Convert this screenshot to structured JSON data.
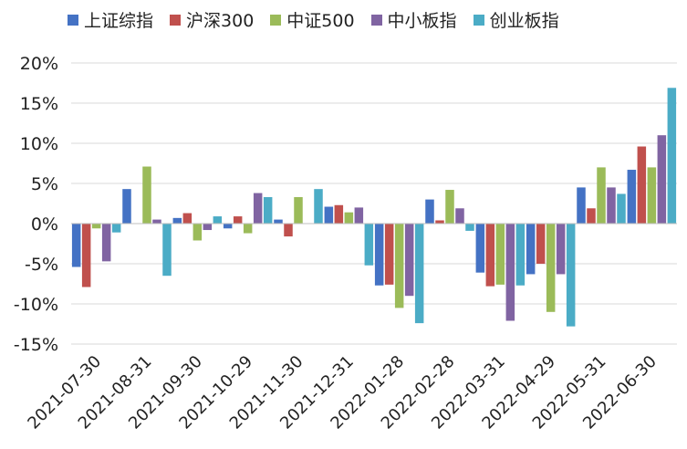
{
  "chart_data": {
    "type": "bar",
    "title": "",
    "xlabel": "",
    "ylabel": "",
    "ylim": [
      -15,
      20
    ],
    "ytick_step": 5,
    "y_format": "percent",
    "grid": true,
    "legend_position": "top",
    "categories": [
      "2021-07-30",
      "2021-08-31",
      "2021-09-30",
      "2021-10-29",
      "2021-11-30",
      "2021-12-31",
      "2022-01-28",
      "2022-02-28",
      "2022-03-31",
      "2022-04-29",
      "2022-05-31",
      "2022-06-30"
    ],
    "series": [
      {
        "name": "上证综指",
        "color": "#4472C4",
        "values": [
          -5.4,
          4.3,
          0.7,
          -0.6,
          0.5,
          2.1,
          -7.7,
          3.0,
          -6.1,
          -6.3,
          4.5,
          6.7
        ]
      },
      {
        "name": "沪深300",
        "color": "#C0504D",
        "values": [
          -7.9,
          0.0,
          1.3,
          0.9,
          -1.6,
          2.3,
          -7.6,
          0.4,
          -7.8,
          -5.0,
          1.9,
          9.6
        ]
      },
      {
        "name": "中证500",
        "color": "#9BBB59",
        "values": [
          -0.6,
          7.1,
          -2.1,
          -1.2,
          3.3,
          1.4,
          -10.5,
          4.2,
          -7.6,
          -11.0,
          7.0,
          7.0
        ]
      },
      {
        "name": "中小板指",
        "color": "#8064A2",
        "values": [
          -4.7,
          0.5,
          -0.8,
          3.8,
          0.0,
          2.0,
          -9.0,
          1.9,
          -12.1,
          -6.3,
          4.5,
          11.0
        ]
      },
      {
        "name": "创业板指",
        "color": "#4BACC6",
        "values": [
          -1.1,
          -6.5,
          0.9,
          3.3,
          4.3,
          -5.2,
          -12.4,
          -0.9,
          -7.7,
          -12.8,
          3.7,
          16.9
        ]
      }
    ]
  }
}
